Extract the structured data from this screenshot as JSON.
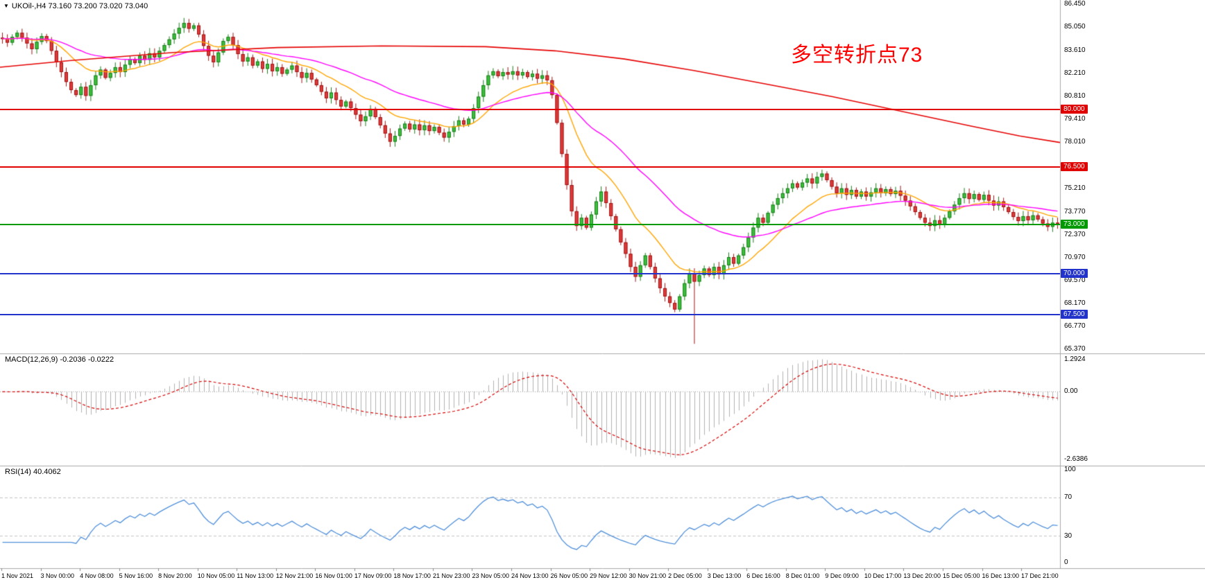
{
  "window": {
    "title": "UKOil-,H4 73.160 73.200 73.020 73.040"
  },
  "icons": {
    "symbol_dropdown": "▼"
  },
  "annotation": {
    "text": "多空转折点73",
    "color": "#ff0000"
  },
  "macd": {
    "label": "MACD(12,26,9) -0.2036 -0.0222",
    "axis_labels": [
      "1.2924",
      "0.00",
      "-2.6386"
    ]
  },
  "rsi": {
    "label": "RSI(14) 40.4062",
    "axis_labels": [
      "100",
      "70",
      "30",
      "0"
    ]
  },
  "price_axis": {
    "labels": [
      {
        "text": "86.450",
        "price": 86.45
      },
      {
        "text": "85.050",
        "price": 85.05
      },
      {
        "text": "83.610",
        "price": 83.61
      },
      {
        "text": "82.210",
        "price": 82.21
      },
      {
        "text": "80.810",
        "price": 80.81
      },
      {
        "text": "79.410",
        "price": 79.41
      },
      {
        "text": "78.010",
        "price": 78.01
      },
      {
        "text": "75.210",
        "price": 75.21
      },
      {
        "text": "73.770",
        "price": 73.77
      },
      {
        "text": "72.370",
        "price": 72.37
      },
      {
        "text": "70.970",
        "price": 70.97
      },
      {
        "text": "69.570",
        "price": 69.57
      },
      {
        "text": "68.170",
        "price": 68.17
      },
      {
        "text": "66.770",
        "price": 66.77
      },
      {
        "text": "65.370",
        "price": 65.37
      }
    ],
    "badges": [
      {
        "text": "80.000",
        "price": 80.0,
        "color": "#e00000"
      },
      {
        "text": "76.500",
        "price": 76.5,
        "color": "#e00000"
      },
      {
        "text": "73.000",
        "price": 73.0,
        "color": "#009900"
      },
      {
        "text": "70.000",
        "price": 70.0,
        "color": "#2233cc"
      },
      {
        "text": "67.500",
        "price": 67.5,
        "color": "#2233cc"
      }
    ]
  },
  "time_axis": {
    "labels": [
      "1 Nov 2021",
      "3 Nov 00:00",
      "4 Nov 08:00",
      "5 Nov 16:00",
      "8 Nov 20:00",
      "10 Nov 05:00",
      "11 Nov 13:00",
      "12 Nov 21:00",
      "16 Nov 01:00",
      "17 Nov 09:00",
      "18 Nov 17:00",
      "21 Nov 23:00",
      "23 Nov 05:00",
      "24 Nov 13:00",
      "26 Nov 05:00",
      "29 Nov 12:00",
      "30 Nov 21:00",
      "2 Dec 05:00",
      "3 Dec 13:00",
      "6 Dec 16:00",
      "8 Dec 01:00",
      "9 Dec 09:00",
      "10 Dec 17:00",
      "13 Dec 20:00",
      "15 Dec 05:00",
      "16 Dec 13:00",
      "17 Dec 21:00"
    ]
  },
  "chart_data": {
    "type": "candlestick",
    "symbol": "UKOil",
    "timeframe": "H4",
    "ohlc_current": {
      "open": 73.16,
      "high": 73.2,
      "low": 73.02,
      "close": 73.04
    },
    "y_range": [
      65.37,
      86.45
    ],
    "closes": [
      84.35,
      84.1,
      84.45,
      84.7,
      84.4,
      84.05,
      83.7,
      84.15,
      84.5,
      84.2,
      83.6,
      82.9,
      82.3,
      81.7,
      81.2,
      80.9,
      81.4,
      80.85,
      81.5,
      82.1,
      82.45,
      81.95,
      82.25,
      82.6,
      82.3,
      82.75,
      83.1,
      82.85,
      83.3,
      83.05,
      83.45,
      83.2,
      83.6,
      83.95,
      84.3,
      84.65,
      85.0,
      85.3,
      84.95,
      85.15,
      84.6,
      83.9,
      83.3,
      82.9,
      83.5,
      84.2,
      84.45,
      83.95,
      83.4,
      82.95,
      83.2,
      82.7,
      82.95,
      82.5,
      82.8,
      82.35,
      82.6,
      82.2,
      82.45,
      82.7,
      82.3,
      81.95,
      82.25,
      81.85,
      81.5,
      81.1,
      80.7,
      81.05,
      80.6,
      80.2,
      80.5,
      80.1,
      79.7,
      79.3,
      79.6,
      80.05,
      79.55,
      79.05,
      78.55,
      78.05,
      78.4,
      78.85,
      79.15,
      78.8,
      79.1,
      78.75,
      79.05,
      78.7,
      78.95,
      78.6,
      78.3,
      78.65,
      79.0,
      79.35,
      79.1,
      79.45,
      80.1,
      80.8,
      81.5,
      82.1,
      82.35,
      82.05,
      82.3,
      82.15,
      82.35,
      82.1,
      82.3,
      82.0,
      82.2,
      81.9,
      82.1,
      81.8,
      80.9,
      79.2,
      77.3,
      75.4,
      73.8,
      72.9,
      73.4,
      72.8,
      73.6,
      74.4,
      75.0,
      74.3,
      73.5,
      72.7,
      71.9,
      71.2,
      70.4,
      69.8,
      70.5,
      71.1,
      70.4,
      69.7,
      69.1,
      68.6,
      68.2,
      67.8,
      68.6,
      69.4,
      70.0,
      69.5,
      69.9,
      70.3,
      69.9,
      70.4,
      69.95,
      70.5,
      71.0,
      70.6,
      71.1,
      71.6,
      72.2,
      72.8,
      73.4,
      73.1,
      73.7,
      74.2,
      74.6,
      74.9,
      75.2,
      75.5,
      75.25,
      75.55,
      75.8,
      75.5,
      75.9,
      76.1,
      75.7,
      75.3,
      74.9,
      75.2,
      74.8,
      75.1,
      74.7,
      75.0,
      74.7,
      74.95,
      75.2,
      74.9,
      75.15,
      74.85,
      75.05,
      74.75,
      74.45,
      74.1,
      73.75,
      73.4,
      73.1,
      72.9,
      73.25,
      73.0,
      73.4,
      73.8,
      74.2,
      74.6,
      74.9,
      74.55,
      74.85,
      74.5,
      74.8,
      74.45,
      74.15,
      74.4,
      74.05,
      73.75,
      73.45,
      73.2,
      73.5,
      73.25,
      73.55,
      73.3,
      73.05,
      72.85,
      73.1,
      73.04
    ],
    "spike": {
      "index": 141,
      "low": 65.7
    },
    "hlines": [
      {
        "price": 80.0,
        "color": "#e00000"
      },
      {
        "price": 76.5,
        "color": "#e00000"
      },
      {
        "price": 73.0,
        "color": "#009900"
      },
      {
        "price": 70.0,
        "color": "#2233cc"
      },
      {
        "price": 67.5,
        "color": "#2233cc"
      }
    ],
    "moving_averages": {
      "orange_ema": 15,
      "magenta_ema": 40,
      "red_ma_points": [
        [
          0,
          82.6
        ],
        [
          100,
          83.0
        ],
        [
          250,
          83.5
        ],
        [
          400,
          83.8
        ],
        [
          550,
          83.9
        ],
        [
          700,
          83.85
        ],
        [
          800,
          83.6
        ],
        [
          900,
          83.1
        ],
        [
          1000,
          82.4
        ],
        [
          1100,
          81.6
        ],
        [
          1200,
          80.8
        ],
        [
          1300,
          79.9
        ],
        [
          1400,
          79.0
        ],
        [
          1470,
          78.4
        ],
        [
          1528,
          78.0
        ]
      ]
    },
    "colors": {
      "up": "#3cc23c",
      "up_border": "#1c7a1c",
      "down": "#e13b3b",
      "down_border": "#9c1515",
      "orange": "#ffa500",
      "magenta": "#ff00ff",
      "red_ma": "#e60000",
      "macd_hist": "#b0b0b0",
      "macd_signal": "#d40000",
      "rsi_line": "#4f8fd9"
    },
    "indicators": [
      {
        "type": "macd",
        "fast": 12,
        "slow": 26,
        "signal": 9,
        "values": [
          -0.2036,
          -0.0222
        ],
        "range": [
          -2.6386,
          1.2924
        ]
      },
      {
        "type": "rsi",
        "period": 14,
        "value": 40.4062,
        "levels": [
          70,
          30
        ],
        "range": [
          0,
          100
        ]
      }
    ]
  }
}
